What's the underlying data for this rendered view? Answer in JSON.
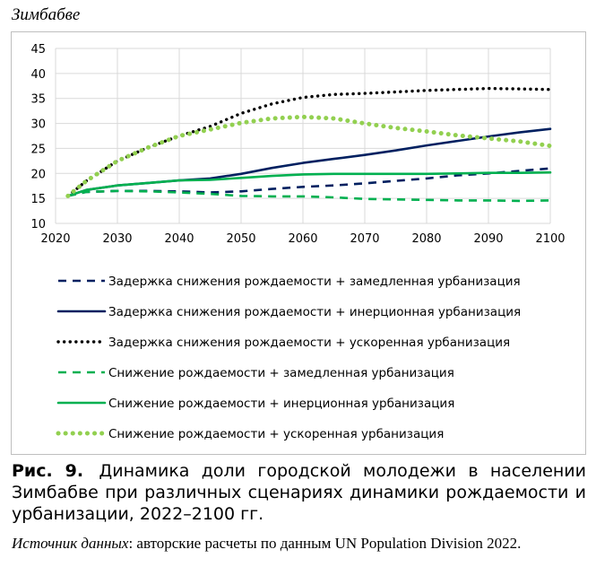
{
  "figure": {
    "country": "Зимбабве",
    "caption_label": "Рис. 9.",
    "caption_text": "Динамика доли городской молодежи в населении Зимбабве при различных сценариях динамики рождаемости и урбанизации, 2022–2100 гг.",
    "source_label": "Источник данных",
    "source_text": ": авторские расчеты по данным UN Population Division 2022."
  },
  "chart_data": {
    "type": "line",
    "title": "Зимбабве",
    "xlim": [
      2020,
      2100
    ],
    "ylim": [
      10,
      45
    ],
    "x_ticks": [
      2020,
      2030,
      2040,
      2050,
      2060,
      2070,
      2080,
      2090,
      2100
    ],
    "y_ticks": [
      10,
      15,
      20,
      25,
      30,
      35,
      40,
      45
    ],
    "grid": true,
    "legend_position": "bottom",
    "x": [
      2022,
      2025,
      2030,
      2035,
      2040,
      2045,
      2050,
      2055,
      2060,
      2065,
      2070,
      2075,
      2080,
      2085,
      2090,
      2095,
      2100
    ],
    "series": [
      {
        "name": "Задержка снижения рождаемости + замедленная урбанизация",
        "color": "#002060",
        "style": "dashed",
        "values": [
          15.5,
          16.3,
          16.5,
          16.5,
          16.4,
          16.2,
          16.4,
          16.9,
          17.3,
          17.6,
          18.0,
          18.5,
          19.0,
          19.6,
          20.0,
          20.5,
          21.0
        ]
      },
      {
        "name": "Задержка снижения рождаемости + инерционная урбанизация",
        "color": "#002060",
        "style": "solid",
        "values": [
          15.5,
          16.7,
          17.6,
          18.1,
          18.6,
          19.0,
          19.9,
          21.1,
          22.1,
          22.9,
          23.7,
          24.6,
          25.6,
          26.5,
          27.4,
          28.2,
          28.9
        ]
      },
      {
        "name": "Задержка снижения рождаемости + ускоренная урбанизация",
        "color": "#000000",
        "style": "dotted",
        "values": [
          15.5,
          18.5,
          22.5,
          25.2,
          27.5,
          29.4,
          32.0,
          33.9,
          35.2,
          35.8,
          36.0,
          36.3,
          36.6,
          36.8,
          37.0,
          36.9,
          36.8
        ]
      },
      {
        "name": "Снижение рождаемости + замедленная урбанизация",
        "color": "#00B050",
        "style": "dashed",
        "values": [
          15.5,
          16.3,
          16.5,
          16.4,
          16.2,
          15.9,
          15.5,
          15.4,
          15.4,
          15.2,
          14.9,
          14.8,
          14.7,
          14.6,
          14.6,
          14.5,
          14.6
        ]
      },
      {
        "name": "Снижение рождаемости + инерционная урбанизация",
        "color": "#00B050",
        "style": "solid",
        "values": [
          15.5,
          16.7,
          17.6,
          18.1,
          18.6,
          18.7,
          19.1,
          19.5,
          19.8,
          19.9,
          19.9,
          19.9,
          19.9,
          20.0,
          20.1,
          20.1,
          20.2
        ]
      },
      {
        "name": "Снижение рождаемости + ускоренная урбанизация",
        "color": "#92D050",
        "style": "dotted-heavy",
        "values": [
          15.5,
          18.5,
          22.5,
          25.2,
          27.5,
          28.8,
          30.1,
          31.0,
          31.3,
          31.0,
          30.0,
          29.1,
          28.4,
          27.6,
          27.0,
          26.4,
          25.5
        ]
      }
    ]
  }
}
